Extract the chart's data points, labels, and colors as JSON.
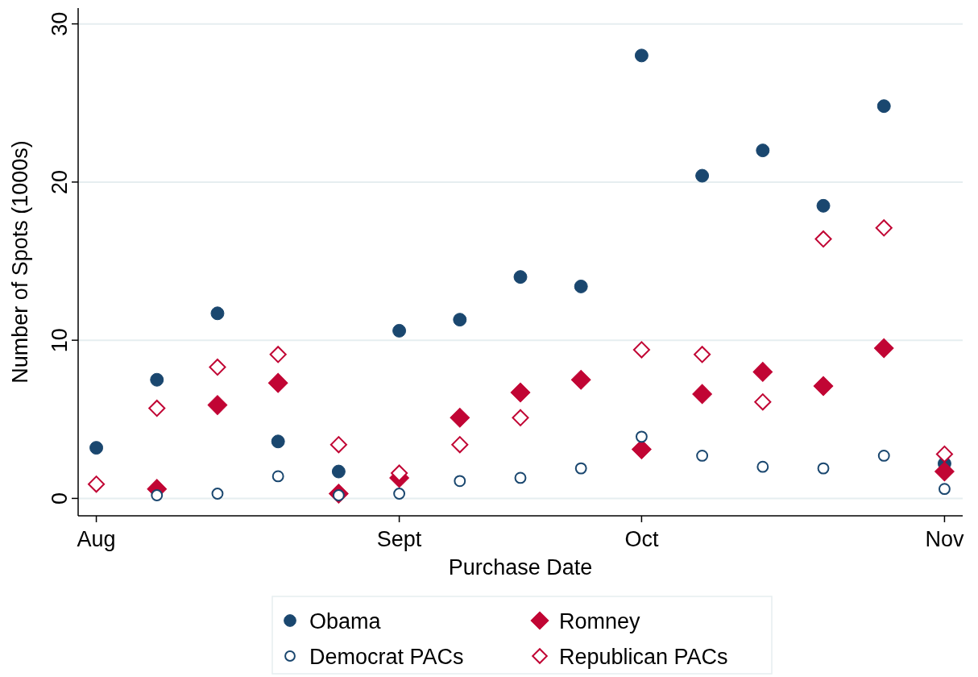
{
  "chart_data": {
    "type": "scatter",
    "xlabel": "Purchase Date",
    "ylabel": "Number of Spots (1000s)",
    "categories": [
      "Aug",
      null,
      null,
      null,
      null,
      "Sept",
      null,
      null,
      null,
      "Oct",
      null,
      null,
      null,
      null,
      "Nov"
    ],
    "ylim": [
      -1.1,
      31
    ],
    "yticks": [
      0,
      10,
      20,
      30
    ],
    "grid": "y",
    "legend": "bottom",
    "series": [
      {
        "name": "Obama",
        "color": "#1a476f",
        "marker": "circle",
        "values": [
          3.2,
          7.5,
          11.7,
          3.6,
          1.7,
          10.6,
          11.3,
          14.0,
          13.4,
          28.0,
          20.4,
          22.0,
          18.5,
          24.8,
          2.2
        ]
      },
      {
        "name": "Romney",
        "color": "#c10534",
        "marker": "diamond",
        "values": [
          null,
          0.6,
          5.9,
          7.3,
          0.3,
          1.3,
          5.1,
          6.7,
          7.5,
          3.1,
          6.6,
          8.0,
          7.1,
          9.5,
          1.7
        ]
      },
      {
        "name": "Democrat PACs",
        "color": "#1a476f",
        "marker": "circle",
        "values": [
          null,
          0.2,
          0.3,
          1.4,
          0.2,
          0.3,
          1.1,
          1.3,
          1.9,
          3.9,
          2.7,
          2.0,
          1.9,
          2.7,
          0.6
        ]
      },
      {
        "name": "Republican PACs",
        "color": "#c10534",
        "marker": "diamond",
        "values": [
          0.9,
          5.7,
          8.3,
          9.1,
          3.4,
          1.6,
          3.4,
          5.1,
          null,
          9.4,
          9.1,
          6.1,
          16.4,
          17.1,
          2.8
        ]
      }
    ]
  }
}
